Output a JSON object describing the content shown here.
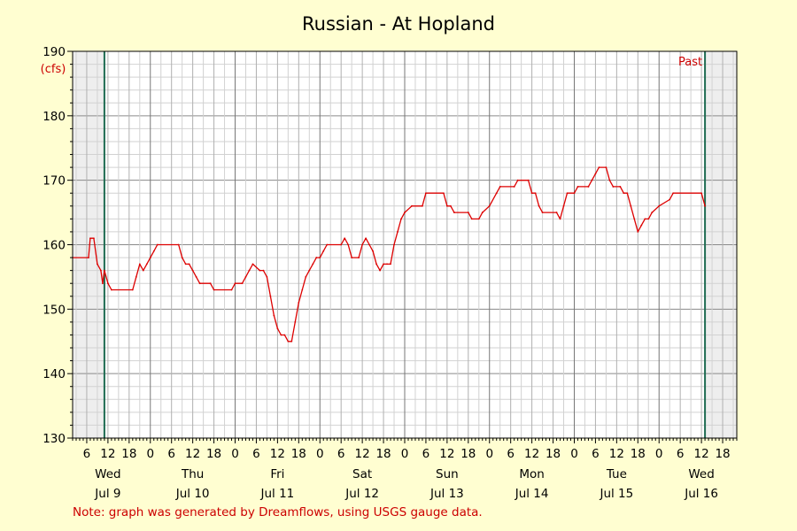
{
  "chart_data": {
    "type": "line",
    "title": "Russian - At Hopland",
    "ylabel": "(cfs)",
    "ylim": [
      130,
      190
    ],
    "yticks": [
      130,
      140,
      150,
      160,
      170,
      180,
      190
    ],
    "x_start": "Jul 9 02:00",
    "x_end": "Jul 16 22:00",
    "x_hour_ticks": [
      "6",
      "12",
      "18",
      "0",
      "6",
      "12",
      "18",
      "0",
      "6",
      "12",
      "18",
      "0",
      "6",
      "12",
      "18",
      "0",
      "6",
      "12",
      "18",
      "0",
      "6",
      "12",
      "18",
      "0",
      "6",
      "12",
      "18",
      "0",
      "6",
      "12",
      "18"
    ],
    "day_labels": [
      {
        "weekday": "Wed",
        "date": "Jul 9"
      },
      {
        "weekday": "Thu",
        "date": "Jul 10"
      },
      {
        "weekday": "Fri",
        "date": "Jul 11"
      },
      {
        "weekday": "Sat",
        "date": "Jul 12"
      },
      {
        "weekday": "Sun",
        "date": "Jul 13"
      },
      {
        "weekday": "Mon",
        "date": "Jul 14"
      },
      {
        "weekday": "Tue",
        "date": "Jul 15"
      },
      {
        "weekday": "Wed",
        "date": "Jul 16"
      }
    ],
    "shaded_ranges": [
      [
        "Jul 9 02:00",
        "Jul 9 11:00"
      ],
      [
        "Jul 16 13:00",
        "Jul 16 22:00"
      ]
    ],
    "markers": [
      {
        "time": "Jul 9 11:00"
      },
      {
        "time": "Jul 16 13:00",
        "label": "Past"
      }
    ],
    "grid": true,
    "series": [
      {
        "color": "#dd0000",
        "points": [
          [
            "Jul 9 02:00",
            158
          ],
          [
            "Jul 9 06:30",
            158
          ],
          [
            "Jul 9 07:00",
            161
          ],
          [
            "Jul 9 08:00",
            161
          ],
          [
            "Jul 9 09:00",
            157
          ],
          [
            "Jul 9 10:00",
            156
          ],
          [
            "Jul 9 10:30",
            154
          ],
          [
            "Jul 9 11:00",
            156
          ],
          [
            "Jul 9 12:00",
            154
          ],
          [
            "Jul 9 13:00",
            153
          ],
          [
            "Jul 9 19:00",
            153
          ],
          [
            "Jul 9 20:00",
            155
          ],
          [
            "Jul 9 21:00",
            157
          ],
          [
            "Jul 9 22:00",
            156
          ],
          [
            "Jul 9 23:00",
            157
          ],
          [
            "Jul 10 00:00",
            158
          ],
          [
            "Jul 10 01:00",
            159
          ],
          [
            "Jul 10 02:00",
            160
          ],
          [
            "Jul 10 08:00",
            160
          ],
          [
            "Jul 10 09:00",
            158
          ],
          [
            "Jul 10 10:00",
            157
          ],
          [
            "Jul 10 11:00",
            157
          ],
          [
            "Jul 10 12:00",
            156
          ],
          [
            "Jul 10 13:00",
            155
          ],
          [
            "Jul 10 14:00",
            154
          ],
          [
            "Jul 10 17:00",
            154
          ],
          [
            "Jul 10 18:00",
            153
          ],
          [
            "Jul 10 23:00",
            153
          ],
          [
            "Jul 11 00:00",
            154
          ],
          [
            "Jul 11 02:00",
            154
          ],
          [
            "Jul 11 03:00",
            155
          ],
          [
            "Jul 11 04:00",
            156
          ],
          [
            "Jul 11 05:00",
            157
          ],
          [
            "Jul 11 07:00",
            156
          ],
          [
            "Jul 11 08:00",
            156
          ],
          [
            "Jul 11 09:00",
            155
          ],
          [
            "Jul 11 10:00",
            152
          ],
          [
            "Jul 11 11:00",
            149
          ],
          [
            "Jul 11 12:00",
            147
          ],
          [
            "Jul 11 13:00",
            146
          ],
          [
            "Jul 11 14:00",
            146
          ],
          [
            "Jul 11 15:00",
            145
          ],
          [
            "Jul 11 16:00",
            145
          ],
          [
            "Jul 11 17:00",
            148
          ],
          [
            "Jul 11 18:00",
            151
          ],
          [
            "Jul 11 19:00",
            153
          ],
          [
            "Jul 11 20:00",
            155
          ],
          [
            "Jul 11 21:00",
            156
          ],
          [
            "Jul 11 22:00",
            157
          ],
          [
            "Jul 11 23:00",
            158
          ],
          [
            "Jul 12 00:00",
            158
          ],
          [
            "Jul 12 01:00",
            159
          ],
          [
            "Jul 12 02:00",
            160
          ],
          [
            "Jul 12 06:00",
            160
          ],
          [
            "Jul 12 07:00",
            161
          ],
          [
            "Jul 12 08:00",
            160
          ],
          [
            "Jul 12 09:00",
            158
          ],
          [
            "Jul 12 11:00",
            158
          ],
          [
            "Jul 12 12:00",
            160
          ],
          [
            "Jul 12 13:00",
            161
          ],
          [
            "Jul 12 14:00",
            160
          ],
          [
            "Jul 12 15:00",
            159
          ],
          [
            "Jul 12 16:00",
            157
          ],
          [
            "Jul 12 17:00",
            156
          ],
          [
            "Jul 12 18:00",
            157
          ],
          [
            "Jul 12 19:00",
            157
          ],
          [
            "Jul 12 20:00",
            157
          ],
          [
            "Jul 12 21:00",
            160
          ],
          [
            "Jul 12 22:00",
            162
          ],
          [
            "Jul 12 23:00",
            164
          ],
          [
            "Jul 13 00:00",
            165
          ],
          [
            "Jul 13 02:00",
            166
          ],
          [
            "Jul 13 05:00",
            166
          ],
          [
            "Jul 13 06:00",
            168
          ],
          [
            "Jul 13 11:00",
            168
          ],
          [
            "Jul 13 12:00",
            166
          ],
          [
            "Jul 13 13:00",
            166
          ],
          [
            "Jul 13 14:00",
            165
          ],
          [
            "Jul 13 18:00",
            165
          ],
          [
            "Jul 13 19:00",
            164
          ],
          [
            "Jul 13 21:00",
            164
          ],
          [
            "Jul 13 22:00",
            165
          ],
          [
            "Jul 14 00:00",
            166
          ],
          [
            "Jul 14 02:00",
            168
          ],
          [
            "Jul 14 03:00",
            169
          ],
          [
            "Jul 14 07:00",
            169
          ],
          [
            "Jul 14 08:00",
            170
          ],
          [
            "Jul 14 11:00",
            170
          ],
          [
            "Jul 14 12:00",
            168
          ],
          [
            "Jul 14 13:00",
            168
          ],
          [
            "Jul 14 14:00",
            166
          ],
          [
            "Jul 14 15:00",
            165
          ],
          [
            "Jul 14 19:00",
            165
          ],
          [
            "Jul 14 20:00",
            164
          ],
          [
            "Jul 14 21:00",
            166
          ],
          [
            "Jul 14 22:00",
            168
          ],
          [
            "Jul 15 00:00",
            168
          ],
          [
            "Jul 15 01:00",
            169
          ],
          [
            "Jul 15 04:00",
            169
          ],
          [
            "Jul 15 05:00",
            170
          ],
          [
            "Jul 15 06:00",
            171
          ],
          [
            "Jul 15 07:00",
            172
          ],
          [
            "Jul 15 09:00",
            172
          ],
          [
            "Jul 15 10:00",
            170
          ],
          [
            "Jul 15 11:00",
            169
          ],
          [
            "Jul 15 13:00",
            169
          ],
          [
            "Jul 15 14:00",
            168
          ],
          [
            "Jul 15 15:00",
            168
          ],
          [
            "Jul 15 16:00",
            166
          ],
          [
            "Jul 15 17:00",
            164
          ],
          [
            "Jul 15 18:00",
            162
          ],
          [
            "Jul 15 19:00",
            163
          ],
          [
            "Jul 15 20:00",
            164
          ],
          [
            "Jul 15 21:00",
            164
          ],
          [
            "Jul 15 22:00",
            165
          ],
          [
            "Jul 16 00:00",
            166
          ],
          [
            "Jul 16 03:00",
            167
          ],
          [
            "Jul 16 04:00",
            168
          ],
          [
            "Jul 16 12:00",
            168
          ],
          [
            "Jul 16 13:00",
            166
          ]
        ]
      }
    ]
  },
  "footnote": "Note: graph was generated by Dreamflows, using USGS gauge data."
}
